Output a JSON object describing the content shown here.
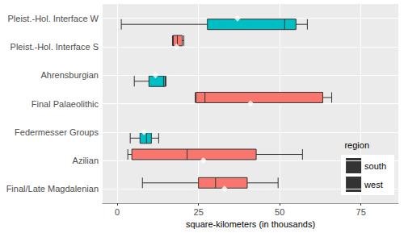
{
  "chart_data": {
    "type": "boxplot",
    "orientation": "horizontal",
    "x_label": "square-kilometers (in thousands)",
    "legend_title": "region",
    "legend": "right",
    "grid": true,
    "categories": [
      "Final/Late Magdalenian",
      "Azilian",
      "Federmesser Groups",
      "Final Palaeolithic",
      "Ahrensburgian",
      "Pleist.-Hol. Interface S",
      "Pleist.-Hol. Interface W"
    ],
    "xlim": [
      -4.5,
      86.5
    ],
    "xticks": [
      0,
      25,
      50,
      75
    ],
    "series": [
      {
        "name": "south",
        "color": "#F8766D",
        "categories": [
          "Final/Late Magdalenian",
          "Azilian",
          "Final Palaeolithic",
          "Pleist.-Hol. Interface S"
        ],
        "boxes": [
          [
            7.75,
            25,
            30.25,
            40,
            49.5
          ],
          [
            3.25,
            4.5,
            21.5,
            42.75,
            57
          ],
          [
            24,
            24.25,
            27,
            63.25,
            66
          ],
          [
            17,
            17.25,
            18.5,
            20,
            20.5
          ]
        ],
        "means": [
          33,
          26.5,
          41,
          18.25
        ]
      },
      {
        "name": "west",
        "color": "#00BFC4",
        "categories": [
          "Federmesser Groups",
          "Ahrensburgian",
          "Pleist.-Hol. Interface W"
        ],
        "boxes": [
          [
            4,
            7,
            9,
            10.5,
            12.75
          ],
          [
            5.25,
            9.75,
            14.25,
            14.75,
            15
          ],
          [
            1.25,
            27.75,
            51.5,
            55,
            58.5
          ]
        ],
        "means": [
          8.25,
          11.75,
          37
        ]
      }
    ]
  }
}
